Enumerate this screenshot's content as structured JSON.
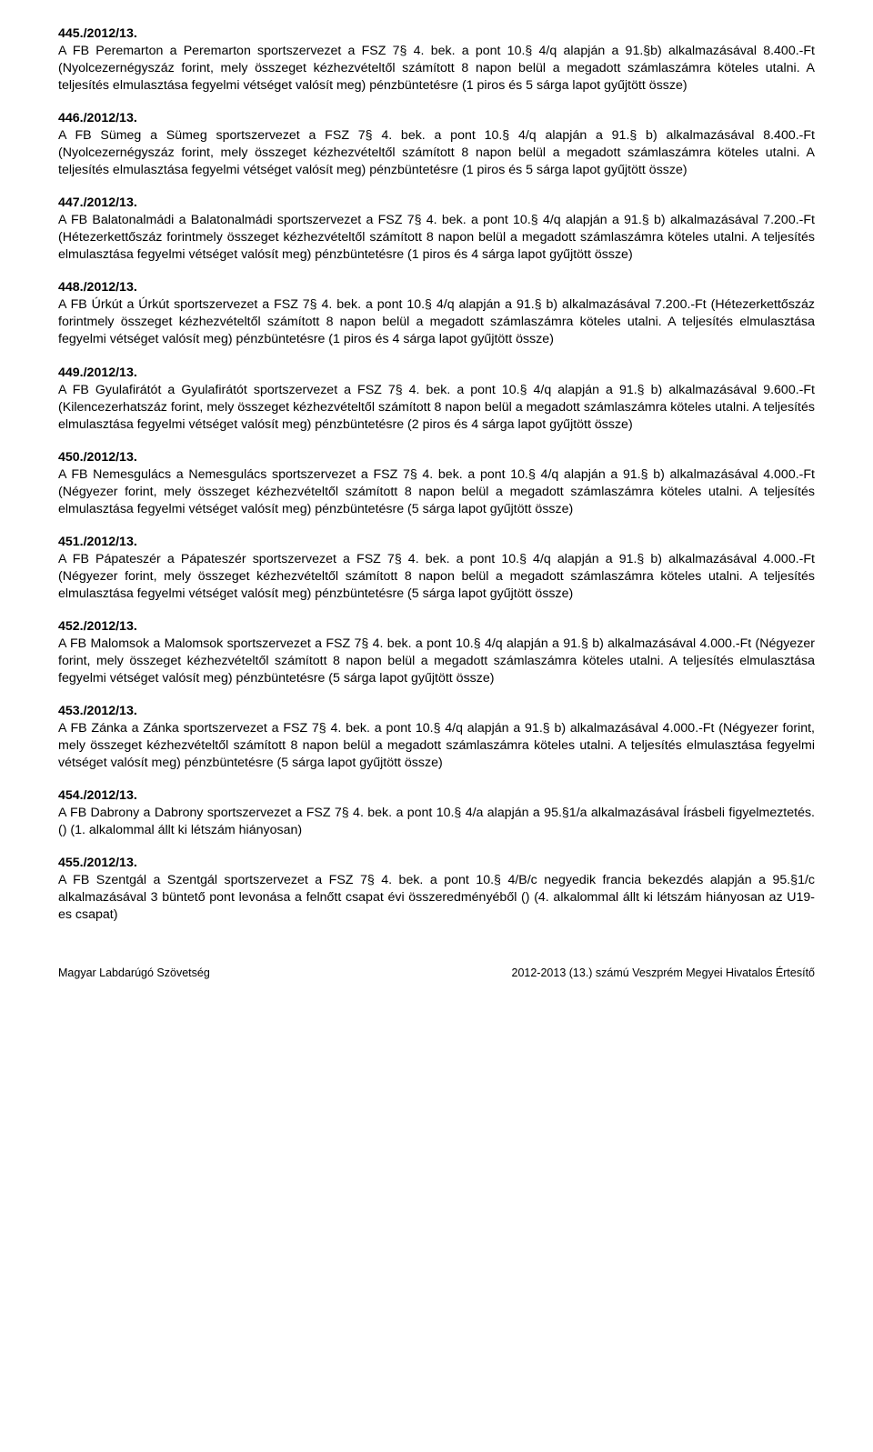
{
  "fontsize_body": 14.2,
  "fontsize_footer": 12.5,
  "text_color": "#000000",
  "background_color": "#ffffff",
  "entries": [
    {
      "num": "445./2012/13.",
      "body": "A FB Peremarton a Peremarton sportszervezet a FSZ 7§ 4. bek. a pont 10.§ 4/q alapján a 91.§b) alkalmazásával 8.400.-Ft (Nyolcezernégyszáz forint, mely összeget kézhezvételtől számított 8 napon belül a megadott számlaszámra köteles utalni. A teljesítés elmulasztása fegyelmi vétséget valósít meg) pénzbüntetésre  (1 piros és 5 sárga lapot gyűjtött össze)"
    },
    {
      "num": "446./2012/13.",
      "body": "A FB Sümeg a Sümeg sportszervezet a FSZ 7§ 4. bek. a pont 10.§ 4/q alapján a 91.§ b) alkalmazásával 8.400.-Ft (Nyolcezernégyszáz forint, mely összeget kézhezvételtől számított 8 napon belül a megadott számlaszámra köteles utalni. A teljesítés elmulasztása fegyelmi vétséget valósít meg) pénzbüntetésre  (1 piros és 5 sárga lapot gyűjtött össze)"
    },
    {
      "num": "447./2012/13.",
      "body": "A FB Balatonalmádi a Balatonalmádi sportszervezet a FSZ 7§ 4. bek. a pont 10.§ 4/q alapján a 91.§ b) alkalmazásával 7.200.-Ft (Hétezerkettőszáz forintmely összeget kézhezvételtől számított 8 napon belül a megadott számlaszámra köteles utalni. A teljesítés elmulasztása fegyelmi vétséget valósít meg) pénzbüntetésre  (1 piros és 4 sárga lapot gyűjtött össze)"
    },
    {
      "num": "448./2012/13.",
      "body": "A FB Úrkút a Úrkút sportszervezet a FSZ 7§ 4. bek. a pont 10.§ 4/q alapján a 91.§ b) alkalmazásával 7.200.-Ft (Hétezerkettőszáz forintmely összeget kézhezvételtől számított 8 napon belül a megadott számlaszámra köteles utalni. A teljesítés elmulasztása fegyelmi vétséget valósít meg) pénzbüntetésre  (1 piros és 4 sárga lapot gyűjtött össze)"
    },
    {
      "num": "449./2012/13.",
      "body": "A FB Gyulafirátót a Gyulafirátót sportszervezet a FSZ 7§ 4. bek. a pont 10.§ 4/q alapján a 91.§ b) alkalmazásával 9.600.-Ft (Kilencezerhatszáz forint, mely összeget kézhezvételtől számított 8 napon belül a megadott számlaszámra köteles utalni. A teljesítés elmulasztása fegyelmi vétséget valósít meg) pénzbüntetésre  (2 piros és 4 sárga lapot gyűjtött össze)"
    },
    {
      "num": "450./2012/13.",
      "body": "A FB Nemesgulács a Nemesgulács sportszervezet a FSZ 7§ 4. bek. a pont 10.§ 4/q alapján a 91.§ b) alkalmazásával 4.000.-Ft (Négyezer forint, mely összeget kézhezvételtől számított 8 napon belül a megadott számlaszámra köteles utalni. A teljesítés elmulasztása fegyelmi vétséget valósít meg) pénzbüntetésre  (5 sárga lapot gyűjtött össze)"
    },
    {
      "num": "451./2012/13.",
      "body": "A FB Pápateszér a Pápateszér sportszervezet a FSZ 7§ 4. bek. a pont 10.§ 4/q alapján a 91.§ b) alkalmazásával 4.000.-Ft (Négyezer forint, mely összeget kézhezvételtől számított 8 napon belül a megadott számlaszámra köteles utalni. A teljesítés elmulasztása fegyelmi vétséget valósít meg) pénzbüntetésre  (5 sárga lapot gyűjtött össze)"
    },
    {
      "num": "452./2012/13.",
      "body": "A FB Malomsok a Malomsok sportszervezet a FSZ 7§ 4. bek. a pont 10.§ 4/q alapján a 91.§ b) alkalmazásával 4.000.-Ft (Négyezer forint, mely összeget kézhezvételtől számított 8 napon belül a megadott számlaszámra köteles utalni. A teljesítés elmulasztása fegyelmi vétséget valósít meg) pénzbüntetésre  (5 sárga lapot gyűjtött össze)"
    },
    {
      "num": "453./2012/13.",
      "body": "A FB Zánka a Zánka sportszervezet a FSZ 7§ 4. bek. a pont 10.§ 4/q alapján a 91.§ b) alkalmazásával 4.000.-Ft (Négyezer forint, mely összeget kézhezvételtől számított 8 napon belül a megadott számlaszámra köteles utalni. A teljesítés elmulasztása fegyelmi vétséget valósít meg) pénzbüntetésre  (5 sárga lapot gyűjtött össze)"
    },
    {
      "num": "454./2012/13.",
      "body": "A FB Dabrony a Dabrony sportszervezet a FSZ 7§ 4. bek. a pont 10.§ 4/a alapján a 95.§1/a alkalmazásával Írásbeli figyelmeztetés. ()  (1. alkalommal állt ki létszám hiányosan)"
    },
    {
      "num": "455./2012/13.",
      "body": "A FB Szentgál a Szentgál sportszervezet a FSZ 7§ 4. bek. a pont 10.§ 4/B/c negyedik francia bekezdés alapján a 95.§1/c alkalmazásával 3 büntető pont levonása a felnőtt csapat évi összeredményéből ()  (4. alkalommal állt ki létszám hiányosan az U19-es csapat)"
    }
  ],
  "footer": {
    "left": "Magyar Labdarúgó Szövetség",
    "right": "2012-2013 (13.) számú Veszprém Megyei Hivatalos Értesítő"
  }
}
